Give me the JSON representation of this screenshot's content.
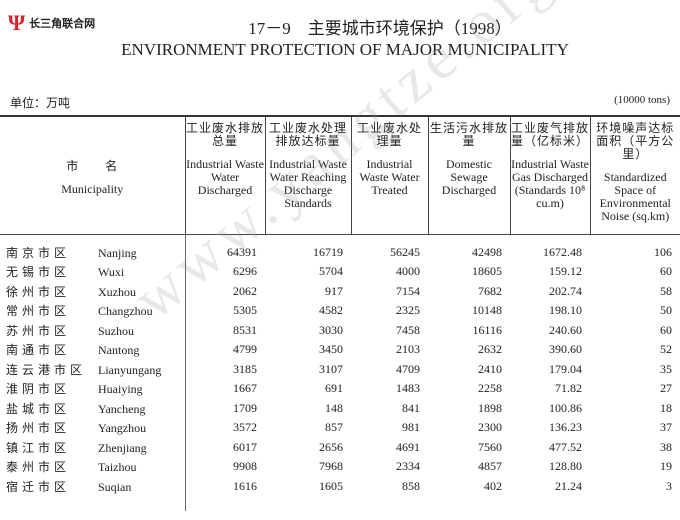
{
  "logo": {
    "text": "长三角联合网"
  },
  "title": "17－9　主要城市环境保护（1998）",
  "subtitle": "ENVIRONMENT PROTECTION OF MAJOR MUNICIPALITY",
  "unit_cn": "单位：万吨",
  "unit_en": "(10000 tons)",
  "watermark": "www.yangtze.org.cn",
  "columns": [
    {
      "cn": "市　　名",
      "en": "Municipality"
    },
    {
      "cn": "工业废水排放总量",
      "en": "Industrial Waste Water Discharged"
    },
    {
      "cn": "工业废水处理排放达标量",
      "en": "Industrial Waste Water Reaching Discharge Standards"
    },
    {
      "cn": "工业废水处理量",
      "en": "Industrial Waste Water Treated"
    },
    {
      "cn": "生活污水排放量",
      "en": "Domestic Sewage Discharged"
    },
    {
      "cn": "工业废气排放量（亿标米）",
      "en": "Industrial Waste Gas Discharged (Standards 10⁸ cu.m)"
    },
    {
      "cn": "环境噪声达标面积（平方公里）",
      "en": "Standardized Space of Environmental Noise (sq.km)"
    }
  ],
  "rows": [
    {
      "cn": "南京市区",
      "en": "Nanjing",
      "v": [
        "64391",
        "16719",
        "56245",
        "42498",
        "1672.48",
        "106"
      ]
    },
    {
      "cn": "无锡市区",
      "en": "Wuxi",
      "v": [
        "6296",
        "5704",
        "4000",
        "18605",
        "159.12",
        "60"
      ]
    },
    {
      "cn": "徐州市区",
      "en": "Xuzhou",
      "v": [
        "2062",
        "917",
        "7154",
        "7682",
        "202.74",
        "58"
      ]
    },
    {
      "cn": "常州市区",
      "en": "Changzhou",
      "v": [
        "5305",
        "4582",
        "2325",
        "10148",
        "198.10",
        "50"
      ]
    },
    {
      "cn": "苏州市区",
      "en": "Suzhou",
      "v": [
        "8531",
        "3030",
        "7458",
        "16116",
        "240.60",
        "60"
      ]
    },
    {
      "cn": "南通市区",
      "en": "Nantong",
      "v": [
        "4799",
        "3450",
        "2103",
        "2632",
        "390.60",
        "52"
      ]
    },
    {
      "cn": "连云港市区",
      "en": "Lianyungang",
      "v": [
        "3185",
        "3107",
        "4709",
        "2410",
        "179.04",
        "35"
      ]
    },
    {
      "cn": "淮阴市区",
      "en": "Huaiying",
      "v": [
        "1667",
        "691",
        "1483",
        "2258",
        "71.82",
        "27"
      ]
    },
    {
      "cn": "盐城市区",
      "en": "Yancheng",
      "v": [
        "1709",
        "148",
        "841",
        "1898",
        "100.86",
        "18"
      ]
    },
    {
      "cn": "扬州市区",
      "en": "Yangzhou",
      "v": [
        "3572",
        "857",
        "981",
        "2300",
        "136.23",
        "37"
      ]
    },
    {
      "cn": "镇江市区",
      "en": "Zhenjiang",
      "v": [
        "6017",
        "2656",
        "4691",
        "7560",
        "477.52",
        "38"
      ]
    },
    {
      "cn": "泰州市区",
      "en": "Taizhou",
      "v": [
        "9908",
        "7968",
        "2334",
        "4857",
        "128.80",
        "19"
      ]
    },
    {
      "cn": "宿迁市区",
      "en": "Suqian",
      "v": [
        "1616",
        "1605",
        "858",
        "402",
        "21.24",
        "3"
      ]
    }
  ]
}
